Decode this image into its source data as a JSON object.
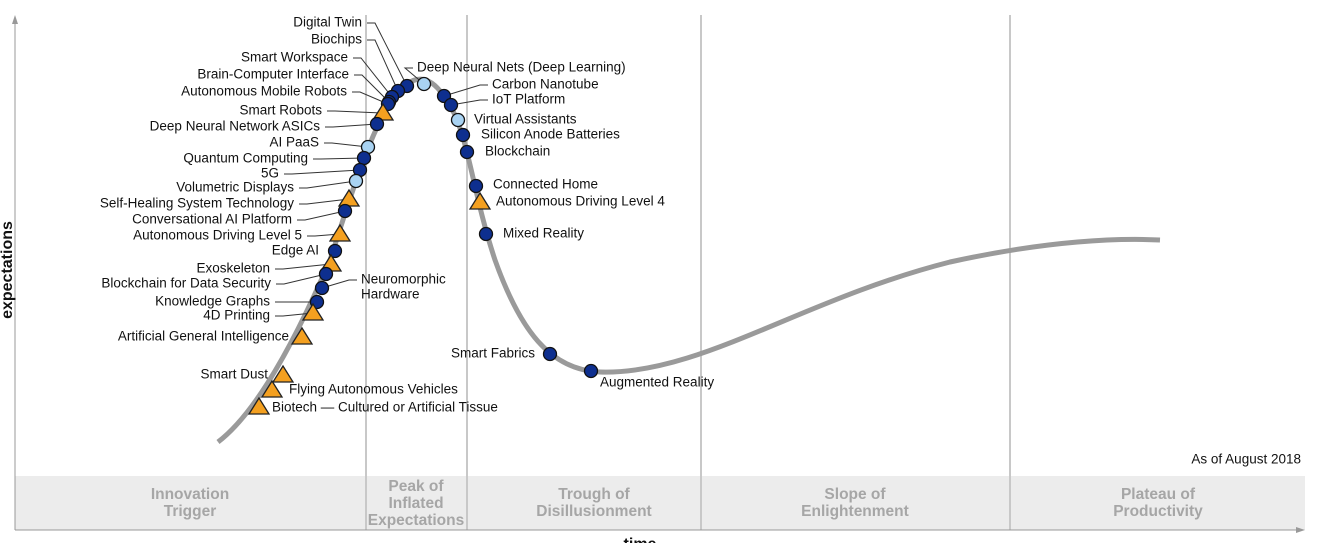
{
  "axes": {
    "y": "expectations",
    "x": "time"
  },
  "note": "As of August 2018",
  "phases": [
    {
      "lines": [
        "Innovation",
        "Trigger"
      ]
    },
    {
      "lines": [
        "Peak of",
        "Inflated",
        "Expectations"
      ]
    },
    {
      "lines": [
        "Trough of",
        "Disillusionment"
      ]
    },
    {
      "lines": [
        "Slope of",
        "Enlightenment"
      ]
    },
    {
      "lines": [
        "Plateau of",
        "Productivity"
      ]
    }
  ],
  "technologies": [
    {
      "name": "Digital Twin",
      "marker": "dark"
    },
    {
      "name": "Biochips",
      "marker": "dark"
    },
    {
      "name": "Smart Workspace",
      "marker": "dark"
    },
    {
      "name": "Brain-Computer Interface",
      "marker": "dark"
    },
    {
      "name": "Autonomous Mobile Robots",
      "marker": "dark"
    },
    {
      "name": "Smart Robots",
      "marker": "triangle"
    },
    {
      "name": "Deep Neural Network ASICs",
      "marker": "dark"
    },
    {
      "name": "AI PaaS",
      "marker": "light"
    },
    {
      "name": "Quantum Computing",
      "marker": "dark"
    },
    {
      "name": "5G",
      "marker": "dark"
    },
    {
      "name": "Volumetric Displays",
      "marker": "light"
    },
    {
      "name": "Self-Healing System Technology",
      "marker": "triangle"
    },
    {
      "name": "Conversational AI Platform",
      "marker": "dark"
    },
    {
      "name": "Autonomous Driving Level 5",
      "marker": "triangle"
    },
    {
      "name": "Edge AI",
      "marker": "dark"
    },
    {
      "name": "Exoskeleton",
      "marker": "triangle"
    },
    {
      "name": "Blockchain for Data Security",
      "marker": "dark"
    },
    {
      "name": "Neuromorphic Hardware",
      "marker": "dark",
      "lines": [
        "Neuromorphic",
        "Hardware"
      ]
    },
    {
      "name": "Knowledge Graphs",
      "marker": "dark"
    },
    {
      "name": "4D Printing",
      "marker": "triangle"
    },
    {
      "name": "Artificial General Intelligence",
      "marker": "triangle"
    },
    {
      "name": "Smart Dust",
      "marker": "triangle"
    },
    {
      "name": "Flying Autonomous Vehicles",
      "marker": "triangle"
    },
    {
      "name": "Biotech — Cultured or Artificial Tissue",
      "marker": "triangle"
    },
    {
      "name": "Deep Neural Nets (Deep Learning)",
      "marker": "light"
    },
    {
      "name": "Carbon Nanotube",
      "marker": "dark"
    },
    {
      "name": "IoT Platform",
      "marker": "dark"
    },
    {
      "name": "Virtual Assistants",
      "marker": "light"
    },
    {
      "name": "Silicon Anode Batteries",
      "marker": "dark"
    },
    {
      "name": "Blockchain",
      "marker": "dark"
    },
    {
      "name": "Connected Home",
      "marker": "dark"
    },
    {
      "name": "Autonomous Driving Level 4",
      "marker": "triangle"
    },
    {
      "name": "Mixed Reality",
      "marker": "dark"
    },
    {
      "name": "Smart Fabrics",
      "marker": "dark"
    },
    {
      "name": "Augmented Reality",
      "marker": "dark"
    }
  ]
}
